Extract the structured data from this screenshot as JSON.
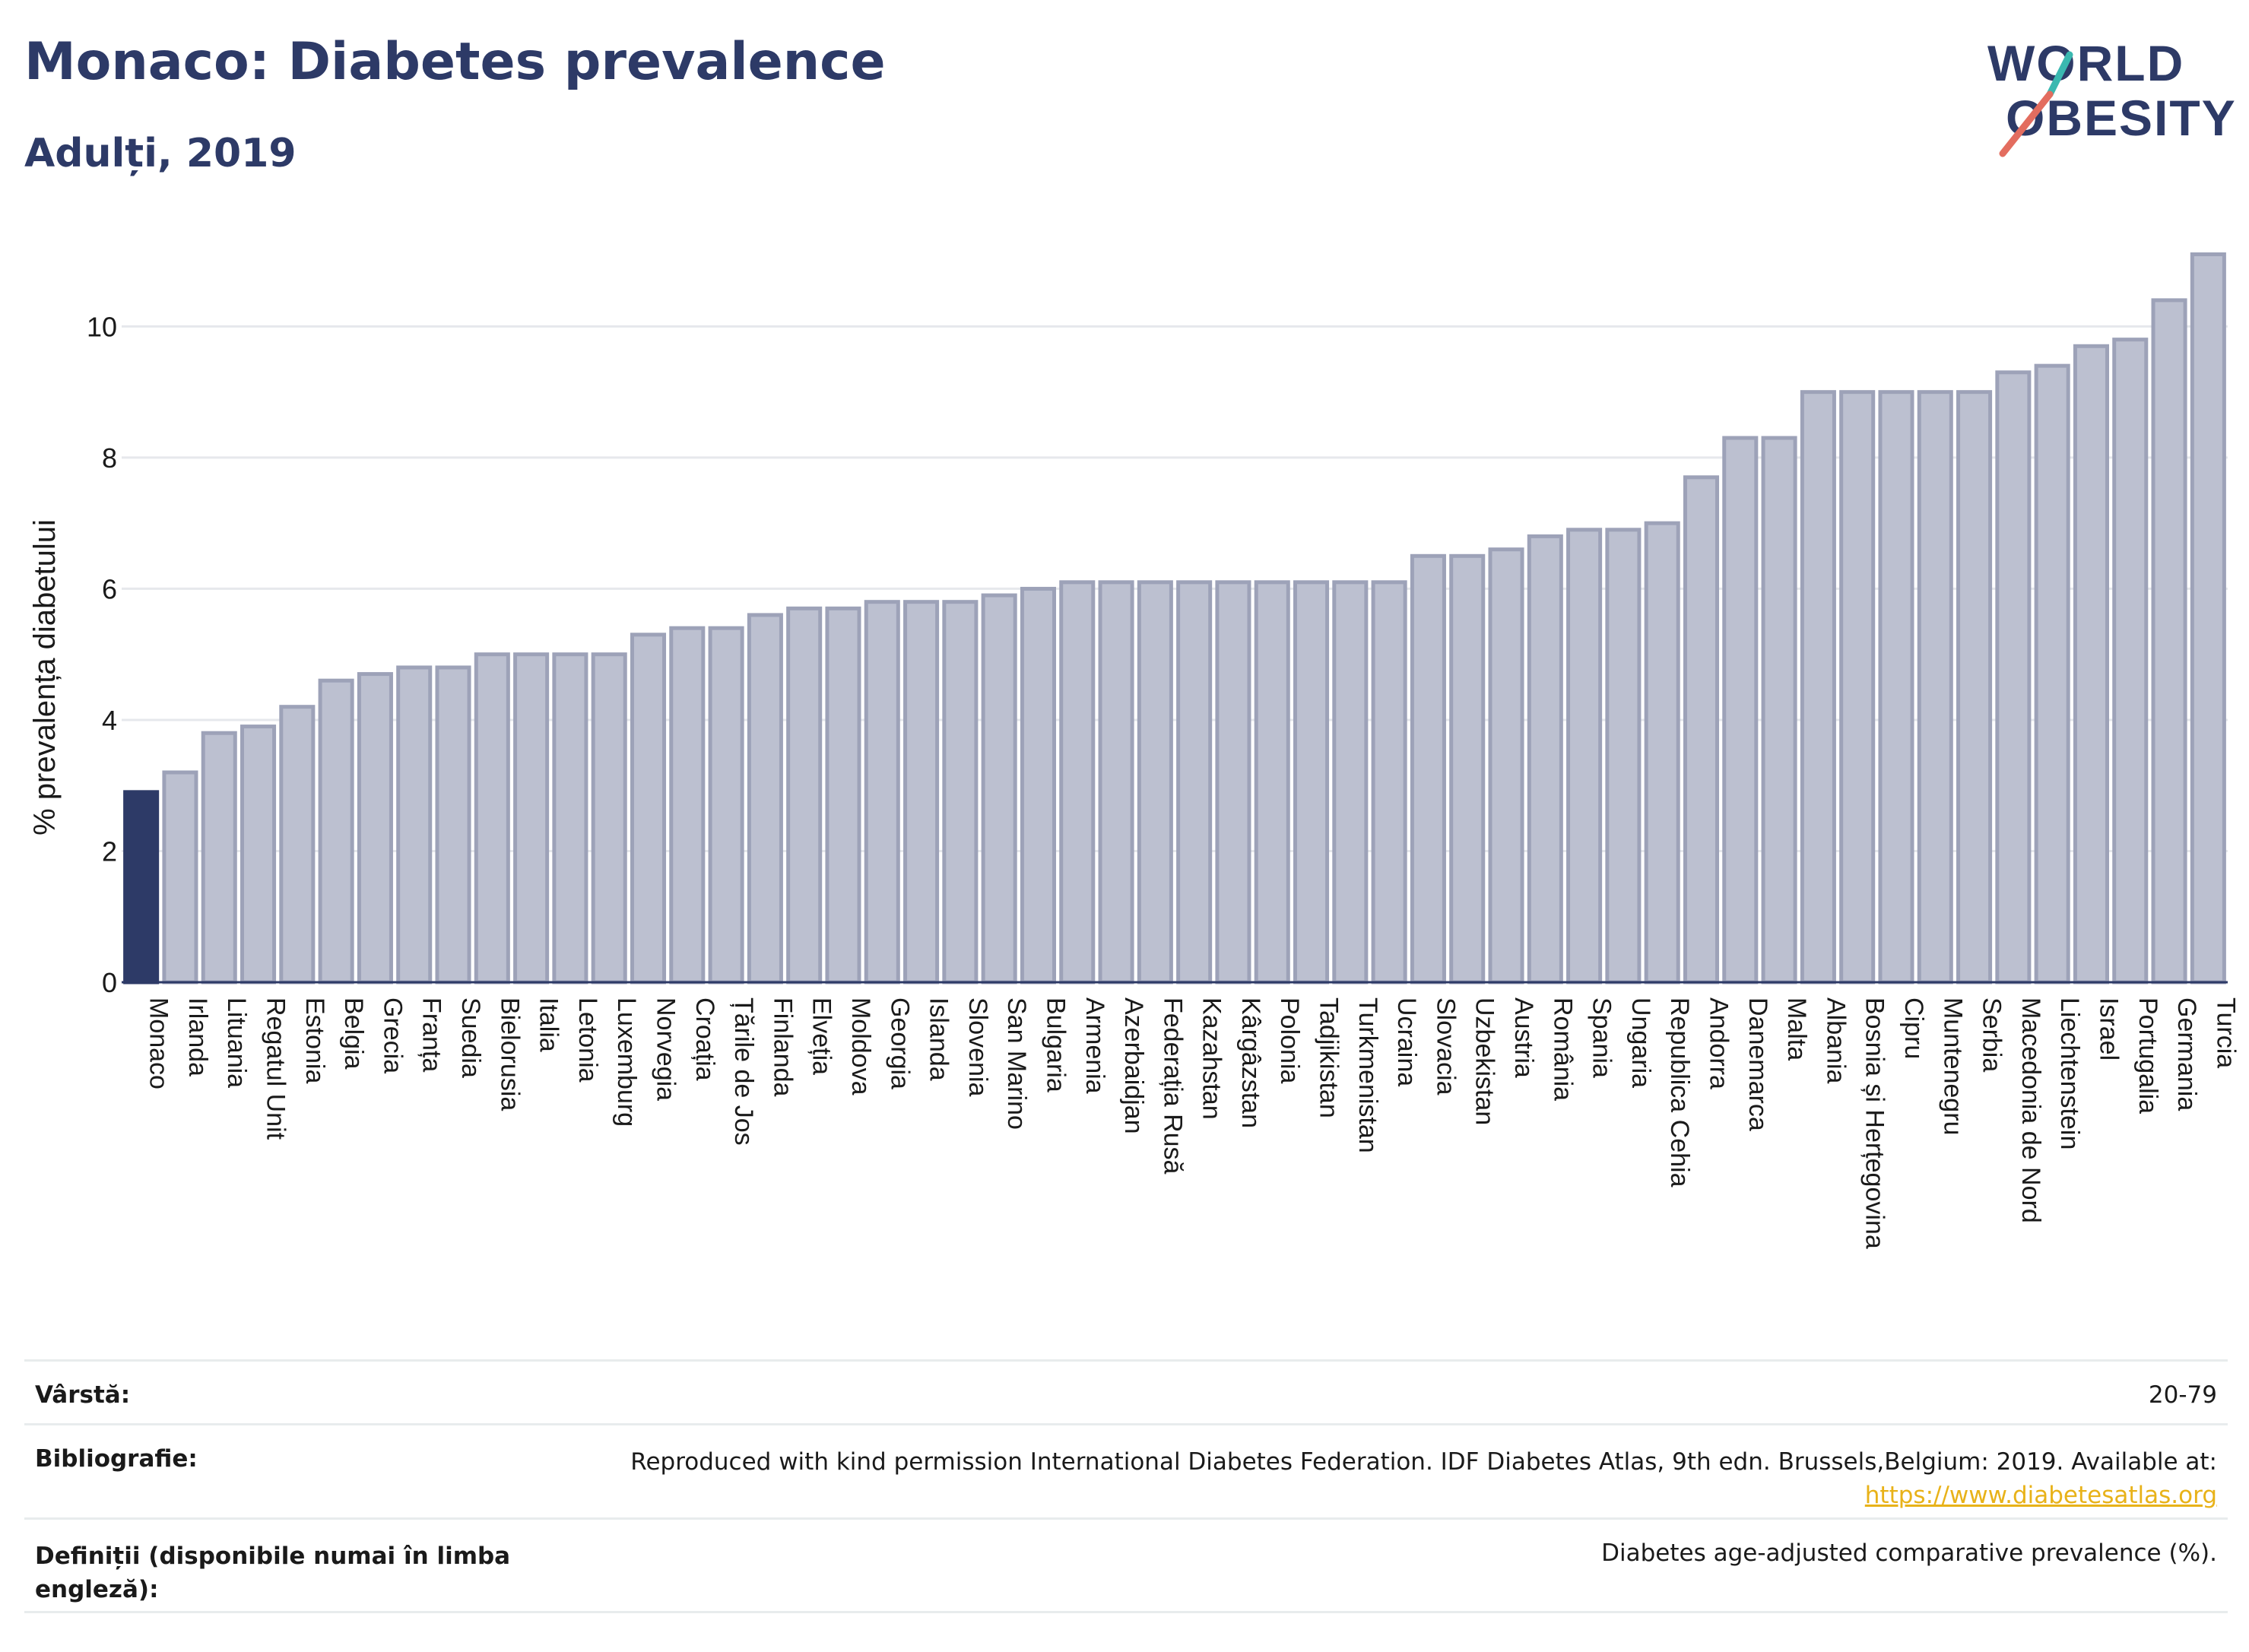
{
  "header": {
    "title": "Monaco: Diabetes prevalence",
    "subtitle": "Adulți, 2019",
    "logo_line1": "WORLD",
    "logo_line2": "OBESITY"
  },
  "colors": {
    "highlight": "#2d3a67",
    "bar_fill": "#bcc0d0",
    "bar_stroke": "#9da2b8",
    "text": "#2d3a67",
    "link": "#e8b219",
    "logo_teal": "#3ab8b0",
    "logo_coral": "#e36d5f"
  },
  "chart_data": {
    "type": "bar",
    "ylabel": "% prevalența diabetului",
    "ylim": [
      0,
      11.5
    ],
    "yticks": [
      0,
      2,
      4,
      6,
      8,
      10
    ],
    "grid": true,
    "highlight_category": "Monaco",
    "categories": [
      "Monaco",
      "Irlanda",
      "Lituania",
      "Regatul Unit",
      "Estonia",
      "Belgia",
      "Grecia",
      "Franța",
      "Suedia",
      "Bielorusia",
      "Italia",
      "Letonia",
      "Luxemburg",
      "Norvegia",
      "Croația",
      "Țările de Jos",
      "Finlanda",
      "Elveția",
      "Moldova",
      "Georgia",
      "Islanda",
      "Slovenia",
      "San Marino",
      "Bulgaria",
      "Armenia",
      "Azerbaidjan",
      "Federația Rusă",
      "Kazahstan",
      "Kârgâzstan",
      "Polonia",
      "Tadjikistan",
      "Turkmenistan",
      "Ucraina",
      "Slovacia",
      "Uzbekistan",
      "Austria",
      "România",
      "Spania",
      "Ungaria",
      "Republica Cehia",
      "Andorra",
      "Danemarca",
      "Malta",
      "Albania",
      "Bosnia și Herțegovina",
      "Cipru",
      "Muntenegru",
      "Serbia",
      "Macedonia de Nord",
      "Liechtenstein",
      "Israel",
      "Portugalia",
      "Germania",
      "Turcia"
    ],
    "values": [
      2.9,
      3.2,
      3.8,
      3.9,
      4.2,
      4.6,
      4.7,
      4.8,
      4.8,
      5.0,
      5.0,
      5.0,
      5.0,
      5.3,
      5.4,
      5.4,
      5.6,
      5.7,
      5.7,
      5.8,
      5.8,
      5.8,
      5.9,
      6.0,
      6.1,
      6.1,
      6.1,
      6.1,
      6.1,
      6.1,
      6.1,
      6.1,
      6.1,
      6.5,
      6.5,
      6.6,
      6.8,
      6.9,
      6.9,
      7.0,
      7.7,
      8.3,
      8.3,
      9.0,
      9.0,
      9.0,
      9.0,
      9.0,
      9.3,
      9.4,
      9.7,
      9.8,
      10.4,
      11.1
    ]
  },
  "info": {
    "age_label": "Vârstă:",
    "age_value": "20-79",
    "bib_label": "Bibliografie:",
    "bib_text": "Reproduced with kind permission International Diabetes Federation. IDF Diabetes Atlas, 9th edn. Brussels,Belgium: 2019. Available at:",
    "bib_link": "https://www.diabetesatlas.org",
    "def_label_line1": "Definiții (disponibile numai în limba",
    "def_label_line2": "engleză):",
    "def_value": "Diabetes age-adjusted comparative prevalence (%)."
  }
}
